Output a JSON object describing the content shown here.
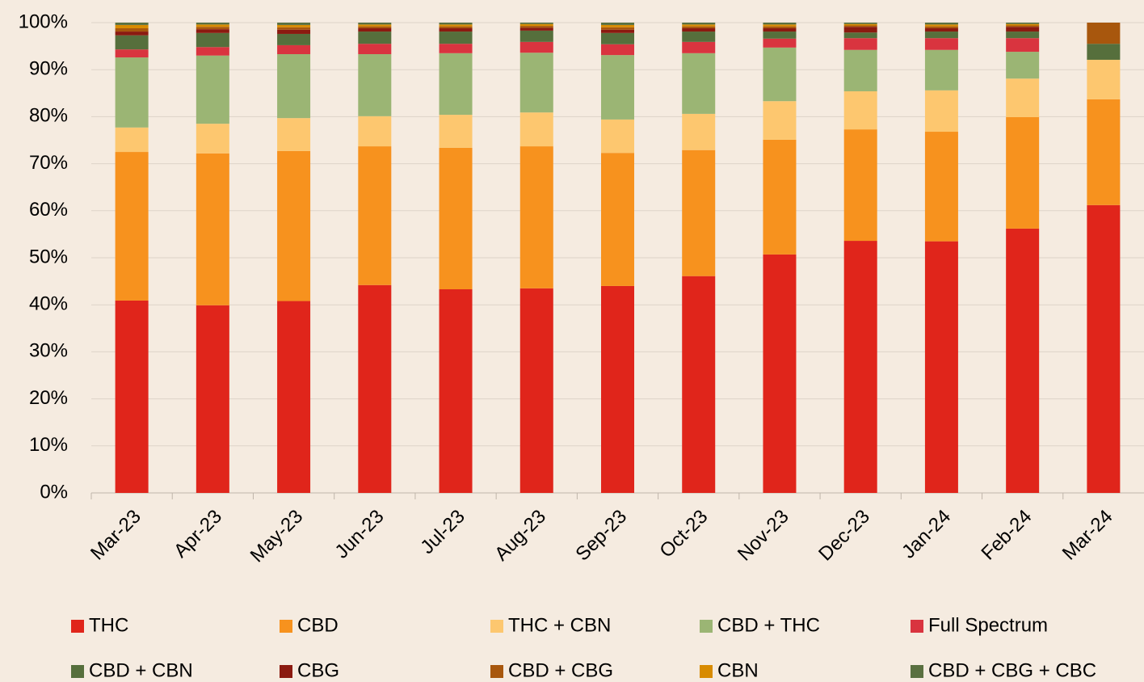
{
  "chart_data": {
    "type": "stacked_bar",
    "categories": [
      "Mar-23",
      "Apr-23",
      "May-23",
      "Jun-23",
      "Jul-23",
      "Aug-23",
      "Sep-23",
      "Oct-23",
      "Nov-23",
      "Dec-23",
      "Jan-24",
      "Feb-24",
      "Mar-24"
    ],
    "series": [
      {
        "name": "THC",
        "color": "#e0251b",
        "values": [
          40.9,
          39.9,
          40.8,
          44.2,
          43.3,
          43.5,
          44.0,
          46.1,
          50.7,
          53.6,
          53.5,
          56.2,
          61.2
        ]
      },
      {
        "name": "CBD",
        "color": "#f7921e",
        "values": [
          31.6,
          32.3,
          31.9,
          29.5,
          30.1,
          30.2,
          28.3,
          26.8,
          24.4,
          23.7,
          23.3,
          23.7,
          22.5
        ]
      },
      {
        "name": "THC + CBN",
        "color": "#fdc76f",
        "values": [
          5.2,
          6.3,
          7.0,
          6.4,
          7.0,
          7.2,
          7.1,
          7.7,
          8.2,
          8.1,
          8.8,
          8.2,
          8.4
        ]
      },
      {
        "name": "CBD + THC",
        "color": "#9bb574",
        "values": [
          14.9,
          14.5,
          13.6,
          13.2,
          13.1,
          12.7,
          13.7,
          12.9,
          11.4,
          8.8,
          8.6,
          5.7,
          0
        ]
      },
      {
        "name": "Full Spectrum",
        "color": "#d9343f",
        "values": [
          1.7,
          1.8,
          1.9,
          2.2,
          2.0,
          2.3,
          2.3,
          2.4,
          1.9,
          2.5,
          2.5,
          2.9,
          0
        ]
      },
      {
        "name": "CBD + CBN",
        "color": "#566f3c",
        "values": [
          3.0,
          3.0,
          2.4,
          2.6,
          2.6,
          2.4,
          2.4,
          2.2,
          1.5,
          1.2,
          1.4,
          1.4,
          3.4
        ]
      },
      {
        "name": "CBG",
        "color": "#8b1a10",
        "values": [
          0.8,
          0.8,
          0.9,
          0.7,
          0.7,
          0.6,
          0.7,
          0.7,
          0.7,
          1.2,
          0.7,
          1.0,
          0
        ]
      },
      {
        "name": "CBD + CBG",
        "color": "#a8570d",
        "values": [
          0.7,
          0.5,
          0.5,
          0.4,
          0.4,
          0.4,
          0.5,
          0.4,
          0.4,
          0.3,
          0.4,
          0.3,
          4.5
        ]
      },
      {
        "name": "CBN",
        "color": "#d88b00",
        "values": [
          0.7,
          0.5,
          0.5,
          0.4,
          0.4,
          0.4,
          0.5,
          0.4,
          0.4,
          0.3,
          0.4,
          0.3,
          0
        ]
      },
      {
        "name": "CBD + CBG + CBC",
        "color": "#5a7040",
        "values": [
          0.5,
          0.4,
          0.5,
          0.4,
          0.4,
          0.3,
          0.5,
          0.4,
          0.4,
          0.3,
          0.4,
          0.3,
          0
        ]
      }
    ],
    "ylim": [
      0,
      100
    ],
    "yticks": [
      {
        "value": 0,
        "label": "0%"
      },
      {
        "value": 10,
        "label": "10%"
      },
      {
        "value": 20,
        "label": "20%"
      },
      {
        "value": 30,
        "label": "30%"
      },
      {
        "value": 40,
        "label": "40%"
      },
      {
        "value": 50,
        "label": "50%"
      },
      {
        "value": 60,
        "label": "60%"
      },
      {
        "value": 70,
        "label": "70%"
      },
      {
        "value": 80,
        "label": "80%"
      },
      {
        "value": 90,
        "label": "90%"
      },
      {
        "value": 100,
        "label": "100%"
      }
    ],
    "grid": true,
    "legend": "bottom"
  }
}
